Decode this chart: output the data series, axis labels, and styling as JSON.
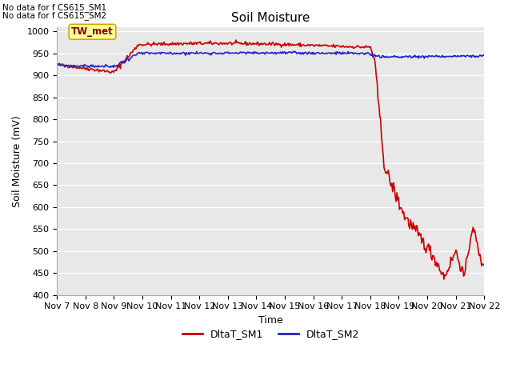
{
  "title": "Soil Moisture",
  "xlabel": "Time",
  "ylabel": "Soil Moisture (mV)",
  "ylim": [
    400,
    1010
  ],
  "yticks": [
    400,
    450,
    500,
    550,
    600,
    650,
    700,
    750,
    800,
    850,
    900,
    950,
    1000
  ],
  "bg_color": "#e8e8e8",
  "fig_color": "#ffffff",
  "no_data_text1": "No data for f CS615_SM1",
  "no_data_text2": "No data for f CS615_SM2",
  "tw_met_label": "TW_met",
  "legend_entries": [
    "DltaT_SM1",
    "DltaT_SM2"
  ],
  "sm1_color": "#cc0000",
  "sm2_color": "#2222cc",
  "linewidth": 1.2,
  "x_tick_labels": [
    "Nov 7",
    "Nov 8",
    "Nov 9",
    "Nov 10",
    "Nov 11",
    "Nov 12",
    "Nov 13",
    "Nov 14",
    "Nov 15",
    "Nov 16",
    "Nov 17",
    "Nov 18",
    "Nov 19",
    "Nov 20",
    "Nov 21",
    "Nov 22"
  ],
  "font_size": 9,
  "title_font_size": 11,
  "tick_font_size": 8
}
